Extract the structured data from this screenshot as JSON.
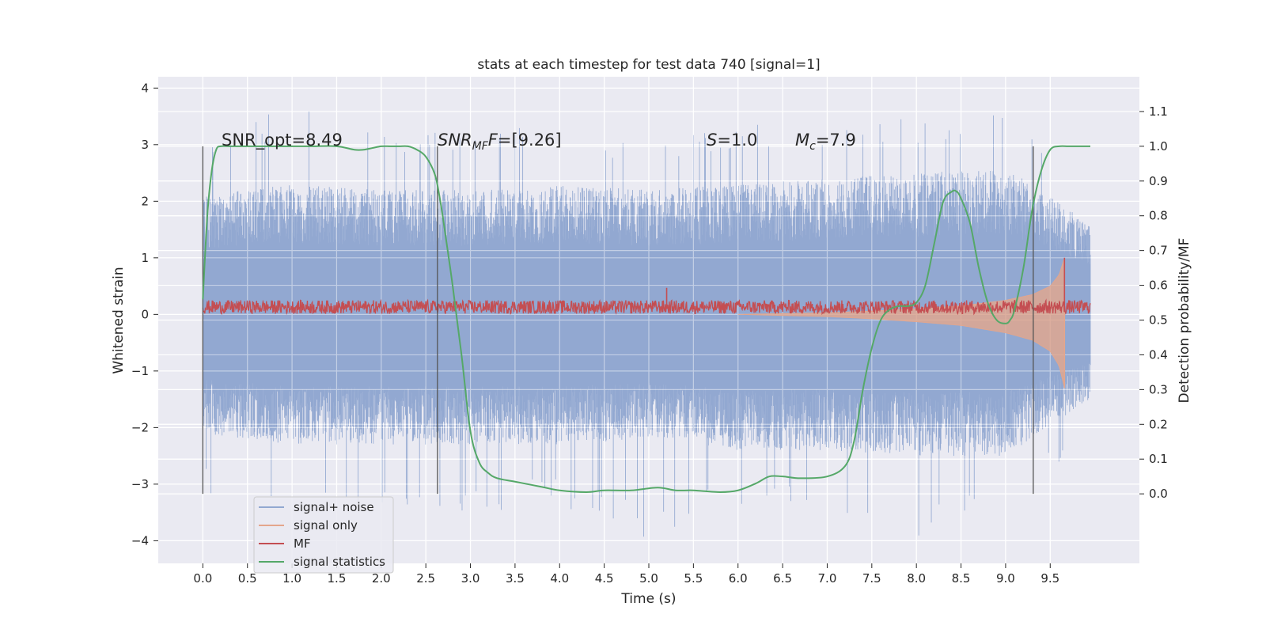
{
  "chart_data": {
    "type": "line",
    "title": "stats at each timestep for test data 740 [signal=1]",
    "xlabel": "Time (s)",
    "ylabel": "Whitened strain",
    "ylabel_right": "Detection probability/MF",
    "xlim": [
      -0.5,
      10.5
    ],
    "ylim": [
      -4.4,
      4.2
    ],
    "ylim_right": [
      -0.2,
      1.2
    ],
    "x_ticks": [
      "0.0",
      "0.5",
      "1.0",
      "1.5",
      "2.0",
      "2.5",
      "3.0",
      "3.5",
      "4.0",
      "4.5",
      "5.0",
      "5.5",
      "6.0",
      "6.5",
      "7.0",
      "7.5",
      "8.0",
      "8.5",
      "9.0",
      "9.5"
    ],
    "y_ticks": [
      "−4",
      "−3",
      "−2",
      "−1",
      "0",
      "1",
      "2",
      "3",
      "4"
    ],
    "y_right_ticks": [
      "0.0",
      "0.1",
      "0.2",
      "0.3",
      "0.4",
      "0.5",
      "0.6",
      "0.7",
      "0.8",
      "0.9",
      "1.0",
      "1.1"
    ],
    "grid": true,
    "legend_position": "lower-left",
    "annotations": {
      "snr_opt": "SNR_opt=8.49",
      "snr_mf_prefix": "SNR",
      "snr_mf_sub": "MF",
      "snr_mf_value": "=[9.26]",
      "s_prefix": "S",
      "s_value": "=1.0",
      "mc_prefix": "M",
      "mc_sub": "c",
      "mc_value": "=7.9"
    },
    "vertical_lines_x": [
      0.0,
      2.63,
      9.31
    ],
    "series": [
      {
        "name": "signal+ noise",
        "color": "#92a8d1",
        "axis": "left",
        "x_range": [
          0.0,
          9.95
        ],
        "envelope": {
          "x": [
            0.0,
            1.0,
            2.0,
            3.0,
            4.0,
            5.0,
            6.0,
            7.0,
            8.0,
            9.0,
            9.95
          ],
          "typ_upper": [
            2.1,
            2.3,
            2.2,
            2.2,
            2.3,
            2.2,
            2.3,
            2.4,
            2.5,
            2.6,
            1.6
          ],
          "typ_lower": [
            -2.1,
            -2.3,
            -2.3,
            -2.3,
            -2.3,
            -2.2,
            -2.4,
            -2.4,
            -2.5,
            -2.5,
            -1.5
          ],
          "peak_upper": [
            3.0,
            3.75,
            3.3,
            3.2,
            3.4,
            3.0,
            3.5,
            3.4,
            3.5,
            3.8,
            2.4
          ],
          "peak_lower": [
            -3.2,
            -3.3,
            -3.4,
            -3.5,
            -3.4,
            -4.0,
            -3.4,
            -3.6,
            -4.0,
            -3.3,
            -2.2
          ]
        }
      },
      {
        "name": "signal only",
        "color": "#e4a68c",
        "axis": "left",
        "x_range": [
          6.0,
          9.66
        ],
        "envelope": {
          "x": [
            6.0,
            7.0,
            7.5,
            8.0,
            8.5,
            9.0,
            9.3,
            9.5,
            9.6,
            9.66
          ],
          "half_amplitude": [
            0.0,
            0.03,
            0.06,
            0.1,
            0.15,
            0.25,
            0.35,
            0.5,
            0.7,
            1.0
          ]
        }
      },
      {
        "name": "MF",
        "color": "#c44e52",
        "axis": "left",
        "x_range": [
          0.0,
          9.95
        ],
        "baseline": 0.13,
        "band": 0.12,
        "spikes": [
          {
            "x": 9.66,
            "y": 1.0
          },
          {
            "x": 5.2,
            "y": 0.47
          }
        ]
      },
      {
        "name": "signal statistics",
        "color": "#55a868",
        "axis": "right",
        "x": [
          0.0,
          0.05,
          0.1,
          0.15,
          0.2,
          0.3,
          0.5,
          0.8,
          1.0,
          1.2,
          1.5,
          1.7,
          1.8,
          1.9,
          2.0,
          2.1,
          2.2,
          2.3,
          2.4,
          2.5,
          2.6,
          2.65,
          2.7,
          2.8,
          2.9,
          3.0,
          3.1,
          3.2,
          3.3,
          3.5,
          3.8,
          4.0,
          4.3,
          4.5,
          4.8,
          5.1,
          5.3,
          5.5,
          5.8,
          6.0,
          6.2,
          6.35,
          6.5,
          6.7,
          7.0,
          7.2,
          7.3,
          7.4,
          7.5,
          7.6,
          7.7,
          7.8,
          7.9,
          8.0,
          8.1,
          8.2,
          8.3,
          8.4,
          8.45,
          8.5,
          8.6,
          8.7,
          8.8,
          8.9,
          9.0,
          9.05,
          9.1,
          9.2,
          9.3,
          9.4,
          9.5,
          9.6,
          9.7,
          9.8,
          9.9,
          9.95
        ],
        "y": [
          0.56,
          0.8,
          0.93,
          0.99,
          1.0,
          1.0,
          1.0,
          1.0,
          1.0,
          1.0,
          1.0,
          0.99,
          0.99,
          0.995,
          1.0,
          1.0,
          1.0,
          1.0,
          0.99,
          0.97,
          0.92,
          0.86,
          0.78,
          0.6,
          0.4,
          0.18,
          0.09,
          0.06,
          0.045,
          0.035,
          0.02,
          0.01,
          0.005,
          0.01,
          0.01,
          0.018,
          0.01,
          0.01,
          0.005,
          0.01,
          0.03,
          0.05,
          0.05,
          0.045,
          0.05,
          0.08,
          0.15,
          0.3,
          0.42,
          0.5,
          0.53,
          0.54,
          0.54,
          0.55,
          0.6,
          0.72,
          0.84,
          0.87,
          0.87,
          0.85,
          0.78,
          0.65,
          0.55,
          0.5,
          0.49,
          0.5,
          0.53,
          0.65,
          0.82,
          0.93,
          0.99,
          1.0,
          1.0,
          1.0,
          1.0,
          1.0
        ]
      }
    ]
  }
}
